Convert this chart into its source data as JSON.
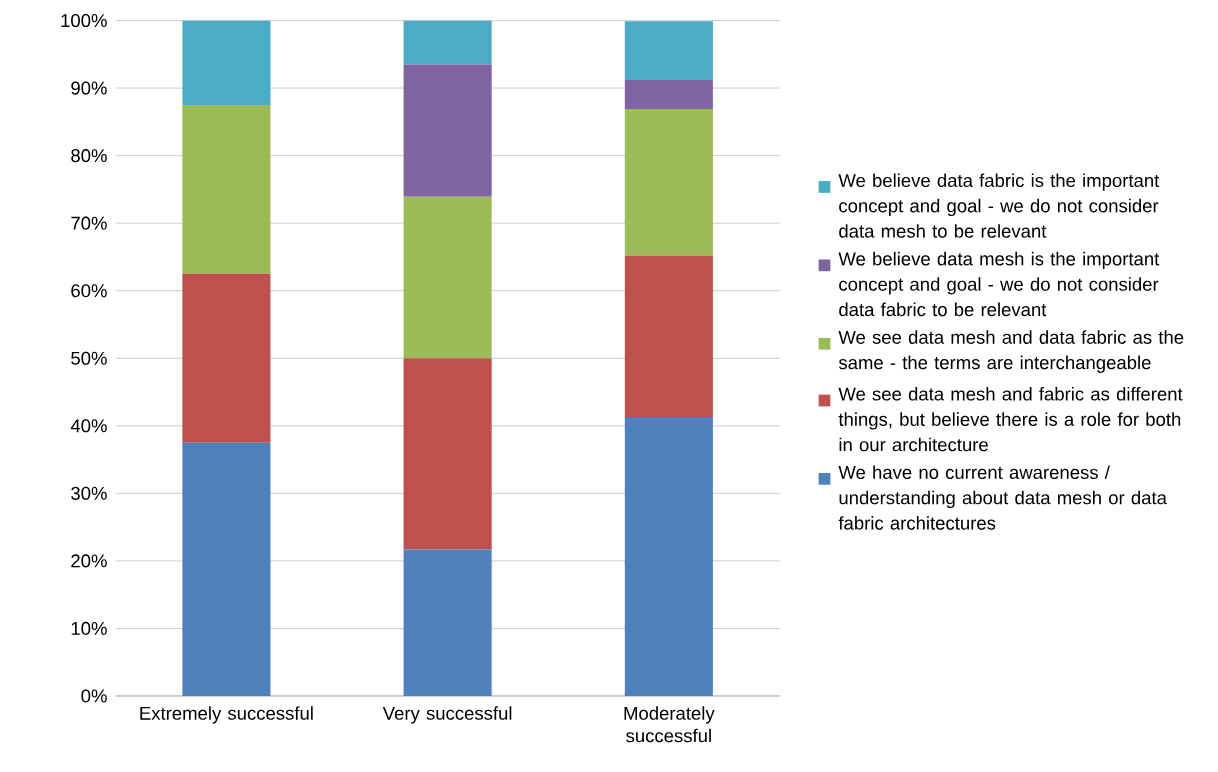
{
  "chart_data": {
    "type": "bar",
    "stacked": true,
    "categories": [
      "Extremely successful",
      "Very successful",
      "Moderately successful"
    ],
    "series": [
      {
        "name": "We have no current awareness / understanding about data mesh or data fabric architectures",
        "color": "#4f81bd",
        "values": [
          37.5,
          21.7,
          41.3
        ]
      },
      {
        "name": "We see data mesh and fabric as different things, but believe there is a role for both in our architecture",
        "color": "#c0504d",
        "values": [
          25,
          28.3,
          23.9
        ]
      },
      {
        "name": "We see data mesh and data fabric as the same - the terms are interchangeable",
        "color": "#9bbb59",
        "values": [
          25,
          23.9,
          21.7
        ]
      },
      {
        "name": "We believe data mesh is the important concept and goal - we do not consider data fabric to be relevant",
        "color": "#8064a2",
        "values": [
          0,
          19.6,
          4.3
        ]
      },
      {
        "name": "We believe data fabric is the important concept and goal - we do not consider data mesh to be relevant",
        "color": "#4bacc6",
        "values": [
          12.5,
          6.5,
          8.7
        ]
      }
    ],
    "ylim": [
      0,
      100
    ],
    "yticks": [
      {
        "value": 0,
        "label": "0%"
      },
      {
        "value": 10,
        "label": "10%"
      },
      {
        "value": 20,
        "label": "20%"
      },
      {
        "value": 30,
        "label": "30%"
      },
      {
        "value": 40,
        "label": "40%"
      },
      {
        "value": 50,
        "label": "50%"
      },
      {
        "value": 60,
        "label": "60%"
      },
      {
        "value": 70,
        "label": "70%"
      },
      {
        "value": 80,
        "label": "80%"
      },
      {
        "value": 90,
        "label": "90%"
      },
      {
        "value": 100,
        "label": "100%"
      }
    ],
    "grid": "y",
    "legend": "right"
  }
}
